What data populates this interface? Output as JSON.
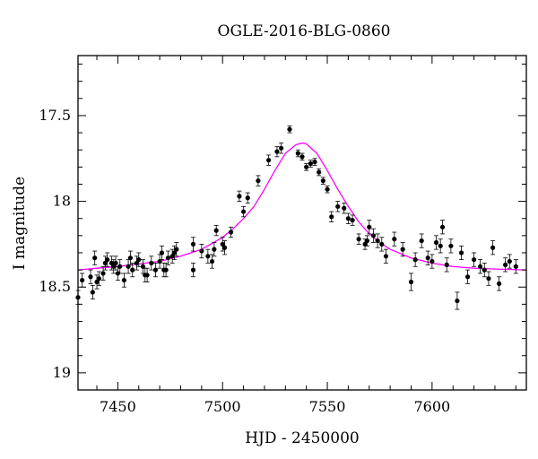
{
  "chart_data": {
    "type": "scatter",
    "title": "OGLE-2016-BLG-0860",
    "xlabel": "HJD - 2450000",
    "ylabel": "I magnitude",
    "xlim": [
      7431,
      7645
    ],
    "ylim": [
      19.1,
      17.15
    ],
    "y_inverted": true,
    "xticks": [
      7450,
      7500,
      7550,
      7600
    ],
    "xtick_labels": [
      "7450",
      "7500",
      "7550",
      "7600"
    ],
    "yticks": [
      17.5,
      18,
      18.5,
      19
    ],
    "ytick_labels": [
      "17.5",
      "18",
      "18.5",
      "19"
    ],
    "grid": false,
    "colors": {
      "points": "#000000",
      "model": "#ff00ff"
    },
    "model": {
      "name": "",
      "x": [
        7431,
        7440,
        7450,
        7460,
        7470,
        7480,
        7490,
        7500,
        7505,
        7510,
        7515,
        7520,
        7525,
        7530,
        7535,
        7538,
        7540,
        7545,
        7550,
        7555,
        7560,
        7565,
        7570,
        7575,
        7580,
        7590,
        7600,
        7610,
        7620,
        7630,
        7645
      ],
      "y": [
        18.4,
        18.39,
        18.38,
        18.365,
        18.35,
        18.32,
        18.28,
        18.21,
        18.16,
        18.1,
        18.03,
        17.93,
        17.82,
        17.72,
        17.67,
        17.66,
        17.665,
        17.72,
        17.82,
        17.93,
        18.03,
        18.12,
        18.19,
        18.24,
        18.28,
        18.33,
        18.36,
        18.38,
        18.39,
        18.395,
        18.4
      ]
    },
    "series": [
      {
        "x": [
          7431,
          7433,
          7437,
          7438,
          7439,
          7440,
          7441,
          7443,
          7444,
          7445,
          7447,
          7448,
          7449,
          7450,
          7451,
          7453,
          7455,
          7456,
          7457,
          7459,
          7460,
          7462,
          7463,
          7464,
          7466,
          7468,
          7470,
          7471,
          7472,
          7473,
          7474,
          7476,
          7477,
          7478,
          7486,
          7486,
          7490,
          7493,
          7495,
          7496,
          7497,
          7500,
          7501,
          7504,
          7508,
          7510,
          7512,
          7517,
          7522,
          7526,
          7528,
          7532,
          7536,
          7538,
          7540,
          7542,
          7544,
          7546,
          7548,
          7550,
          7552,
          7555,
          7558,
          7560,
          7562,
          7565,
          7568,
          7569,
          7570,
          7572,
          7574,
          7576,
          7578,
          7582,
          7586,
          7590,
          7592,
          7595,
          7598,
          7600,
          7602,
          7604,
          7605,
          7607,
          7609,
          7612,
          7614,
          7617,
          7620,
          7623,
          7625,
          7627,
          7629,
          7632,
          7635,
          7637,
          7640
        ],
        "y": [
          18.56,
          18.46,
          18.44,
          18.53,
          18.33,
          18.47,
          18.45,
          18.42,
          18.36,
          18.34,
          18.36,
          18.38,
          18.36,
          18.42,
          18.38,
          18.46,
          18.38,
          18.33,
          18.4,
          18.36,
          18.34,
          18.38,
          18.43,
          18.43,
          18.36,
          18.4,
          18.35,
          18.3,
          18.4,
          18.4,
          18.33,
          18.32,
          18.3,
          18.28,
          18.4,
          18.25,
          18.29,
          18.32,
          18.35,
          18.28,
          18.17,
          18.25,
          18.27,
          18.18,
          17.97,
          18.06,
          17.98,
          17.88,
          17.76,
          17.71,
          17.69,
          17.58,
          17.72,
          17.74,
          17.8,
          17.78,
          17.77,
          17.83,
          17.88,
          17.93,
          18.09,
          18.03,
          18.04,
          18.1,
          18.11,
          18.22,
          18.25,
          18.23,
          18.15,
          18.2,
          18.23,
          18.25,
          18.32,
          18.22,
          18.28,
          18.47,
          18.34,
          18.23,
          18.33,
          18.35,
          18.24,
          18.26,
          18.15,
          18.37,
          18.26,
          18.58,
          18.3,
          18.44,
          18.34,
          18.38,
          18.4,
          18.45,
          18.27,
          18.48,
          18.37,
          18.35,
          18.38
        ],
        "err": [
          0.04,
          0.04,
          0.04,
          0.04,
          0.04,
          0.04,
          0.04,
          0.04,
          0.04,
          0.04,
          0.04,
          0.04,
          0.04,
          0.04,
          0.04,
          0.04,
          0.04,
          0.04,
          0.04,
          0.04,
          0.04,
          0.04,
          0.04,
          0.04,
          0.04,
          0.04,
          0.04,
          0.04,
          0.04,
          0.04,
          0.04,
          0.04,
          0.04,
          0.04,
          0.04,
          0.04,
          0.04,
          0.04,
          0.04,
          0.04,
          0.03,
          0.04,
          0.04,
          0.03,
          0.03,
          0.03,
          0.03,
          0.03,
          0.03,
          0.03,
          0.03,
          0.02,
          0.02,
          0.02,
          0.02,
          0.02,
          0.02,
          0.02,
          0.02,
          0.02,
          0.03,
          0.03,
          0.03,
          0.03,
          0.03,
          0.03,
          0.03,
          0.03,
          0.04,
          0.04,
          0.04,
          0.04,
          0.04,
          0.04,
          0.04,
          0.05,
          0.04,
          0.04,
          0.04,
          0.04,
          0.04,
          0.04,
          0.04,
          0.04,
          0.04,
          0.05,
          0.04,
          0.04,
          0.04,
          0.04,
          0.04,
          0.04,
          0.04,
          0.04,
          0.04,
          0.04,
          0.04
        ]
      }
    ]
  }
}
